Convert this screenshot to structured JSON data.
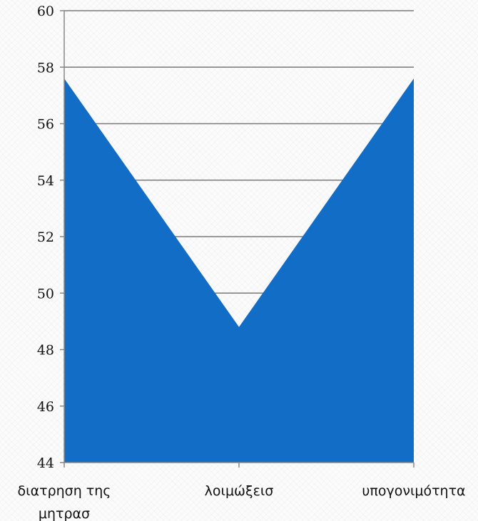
{
  "chart_data": {
    "type": "area",
    "categories": [
      "διατρηση της μητρασ",
      "λοιμώξεισ",
      "υπογονιμότητα"
    ],
    "category_lines": [
      [
        "διατρηση της",
        "μητρασ"
      ],
      [
        "λοιμώξεισ"
      ],
      [
        "υπογονιμότητα"
      ]
    ],
    "series": [
      {
        "values": [
          57.6,
          48.8,
          57.6
        ]
      }
    ],
    "ylim": [
      44,
      60
    ],
    "yticks": [
      44,
      46,
      48,
      50,
      52,
      54,
      56,
      58,
      60
    ],
    "ytick_labels": [
      "44",
      "46",
      "48",
      "50",
      "52",
      "54",
      "56",
      "58",
      "60"
    ],
    "grid": true,
    "legend": "none",
    "title": "",
    "xlabel": "",
    "ylabel": "",
    "colors": {
      "area": "#126dc6",
      "grid": "#7a7a7a",
      "axis": "#888888"
    }
  }
}
